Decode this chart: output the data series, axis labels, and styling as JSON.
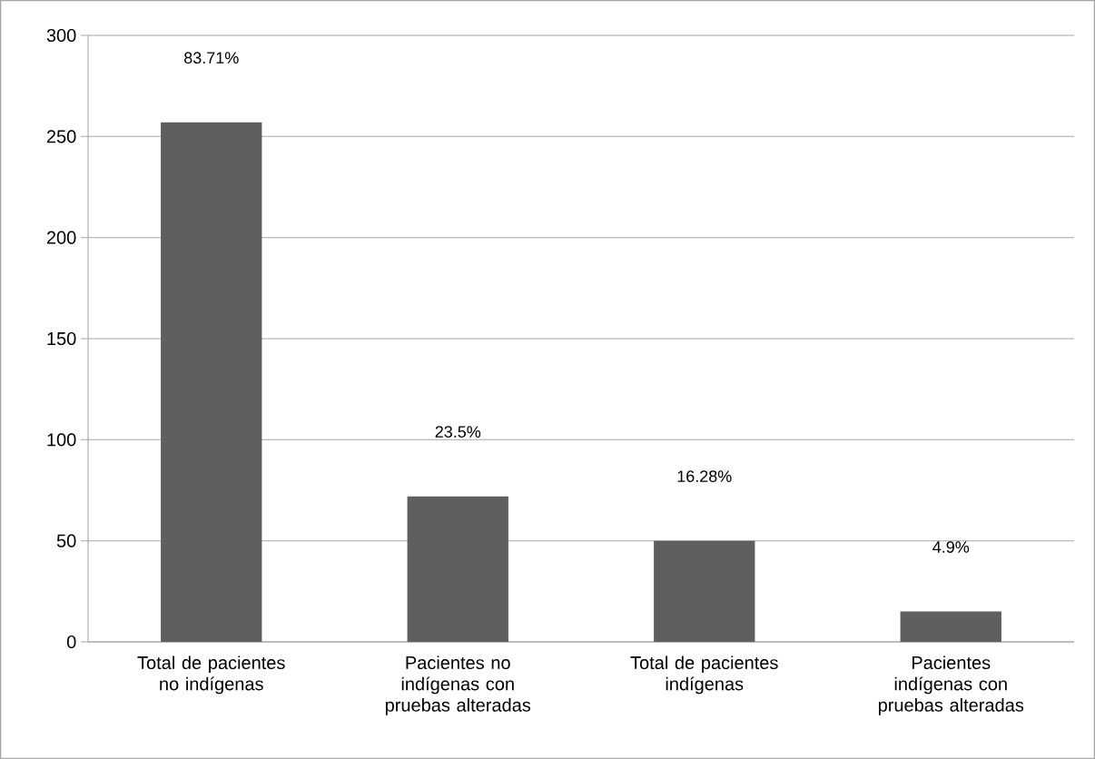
{
  "chart_data": {
    "type": "bar",
    "categories": [
      "Total de pacientes no indígenas",
      "Pacientes no indígenas con pruebas alteradas",
      "Total de pacientes indígenas",
      "Pacientes indígenas con pruebas alteradas"
    ],
    "values": [
      257,
      72,
      50,
      15
    ],
    "annotations": [
      "83.71%",
      "23.5%",
      "16.28%",
      "4.9%"
    ],
    "color": "#5f5f5f",
    "ylim": [
      0,
      300
    ],
    "yticks": [
      0,
      50,
      100,
      150,
      200,
      250,
      300
    ],
    "grid": "y"
  }
}
